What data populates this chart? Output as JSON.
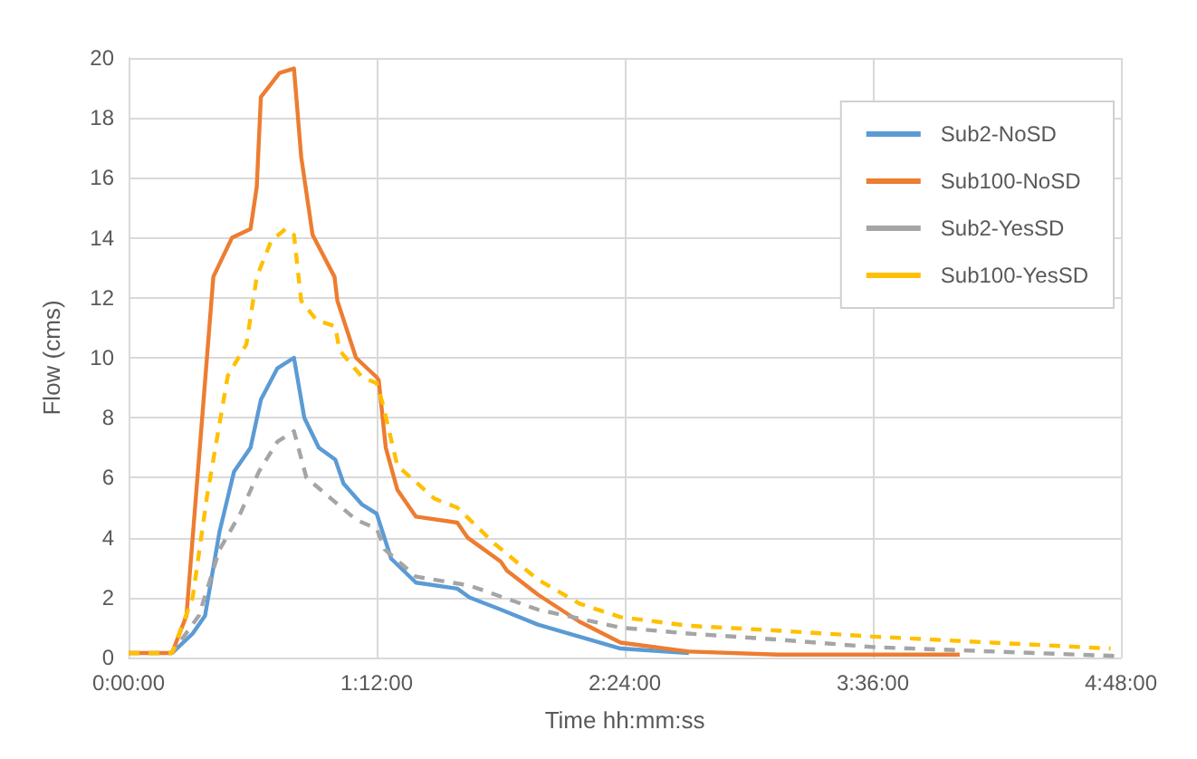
{
  "chart_data": {
    "type": "line",
    "xlabel": "Time hh:mm:ss",
    "ylabel": "Flow (cms)",
    "xlim": [
      0,
      4.8
    ],
    "xticks": [
      {
        "value": 0,
        "label": "0:00:00"
      },
      {
        "value": 1.2,
        "label": "1:12:00"
      },
      {
        "value": 2.4,
        "label": "2:24:00"
      },
      {
        "value": 3.6,
        "label": "3:36:00"
      },
      {
        "value": 4.8,
        "label": "4:48:00"
      }
    ],
    "ylim": [
      0,
      20
    ],
    "yticks": [
      0,
      2,
      4,
      6,
      8,
      10,
      12,
      14,
      16,
      18,
      20
    ],
    "grid": true,
    "legend": "top right",
    "marker": "none",
    "series": [
      {
        "name": "Sub2-NoSD",
        "color": "#5b9bd5",
        "line_style": "solid",
        "x": [
          0.21,
          0.31,
          0.37,
          0.44,
          0.51,
          0.59,
          0.64,
          0.72,
          0.8,
          0.85,
          0.92,
          1.0,
          1.04,
          1.13,
          1.2,
          1.27,
          1.39,
          1.59,
          1.65,
          1.8,
          1.98,
          2.18,
          2.38,
          2.71
        ],
        "values": [
          0.15,
          0.8,
          1.4,
          4.2,
          6.2,
          7.0,
          8.6,
          9.65,
          10.0,
          8.0,
          7.0,
          6.6,
          5.8,
          5.1,
          4.8,
          3.3,
          2.5,
          2.3,
          2.0,
          1.6,
          1.1,
          0.7,
          0.3,
          0.15
        ]
      },
      {
        "name": "Sub100-NoSD",
        "color": "#ed7d31",
        "line_style": "solid",
        "x": [
          0,
          0.21,
          0.28,
          0.34,
          0.41,
          0.5,
          0.59,
          0.62,
          0.64,
          0.73,
          0.8,
          0.835,
          0.89,
          0.996,
          1.01,
          1.1,
          1.2,
          1.21,
          1.244,
          1.3,
          1.39,
          1.59,
          1.64,
          1.8,
          1.83,
          1.98,
          2.18,
          2.38,
          2.71,
          3.14,
          4.02
        ],
        "values": [
          0.15,
          0.15,
          1.4,
          6.6,
          12.7,
          14.0,
          14.3,
          15.7,
          18.7,
          19.5,
          19.65,
          16.7,
          14.1,
          12.7,
          11.9,
          10.0,
          9.35,
          9.25,
          7.0,
          5.6,
          4.7,
          4.5,
          4.0,
          3.2,
          2.9,
          2.1,
          1.2,
          0.5,
          0.2,
          0.1,
          0.1
        ]
      },
      {
        "name": "Sub2-YesSD",
        "color": "#a5a5a5",
        "line_style": "dashed",
        "x": [
          0,
          0.21,
          0.34,
          0.44,
          0.54,
          0.63,
          0.72,
          0.8,
          0.86,
          0.98,
          1.1,
          1.2,
          1.24,
          1.39,
          1.65,
          1.98,
          2.38,
          2.71,
          3.14,
          3.6,
          4.78
        ],
        "values": [
          0.15,
          0.15,
          1.4,
          3.6,
          4.8,
          6.2,
          7.2,
          7.55,
          6.0,
          5.3,
          4.6,
          4.3,
          3.6,
          2.7,
          2.4,
          1.6,
          1.0,
          0.8,
          0.6,
          0.35,
          0.05
        ]
      },
      {
        "name": "Sub100-YesSD",
        "color": "#ffc000",
        "line_style": "dashed",
        "x": [
          0,
          0.21,
          0.31,
          0.38,
          0.48,
          0.57,
          0.62,
          0.69,
          0.76,
          0.8,
          0.835,
          0.91,
          1.0,
          1.02,
          1.13,
          1.2,
          1.23,
          1.3,
          1.48,
          1.59,
          1.77,
          1.98,
          2.18,
          2.38,
          2.71,
          3.14,
          3.6,
          4.75
        ],
        "values": [
          0.15,
          0.15,
          2.0,
          5.4,
          9.4,
          10.45,
          12.7,
          13.9,
          14.3,
          14.1,
          11.9,
          11.25,
          11.05,
          10.25,
          9.35,
          9.15,
          8.45,
          6.4,
          5.3,
          5.0,
          3.8,
          2.6,
          1.8,
          1.35,
          1.06,
          0.9,
          0.7,
          0.3
        ]
      }
    ]
  }
}
